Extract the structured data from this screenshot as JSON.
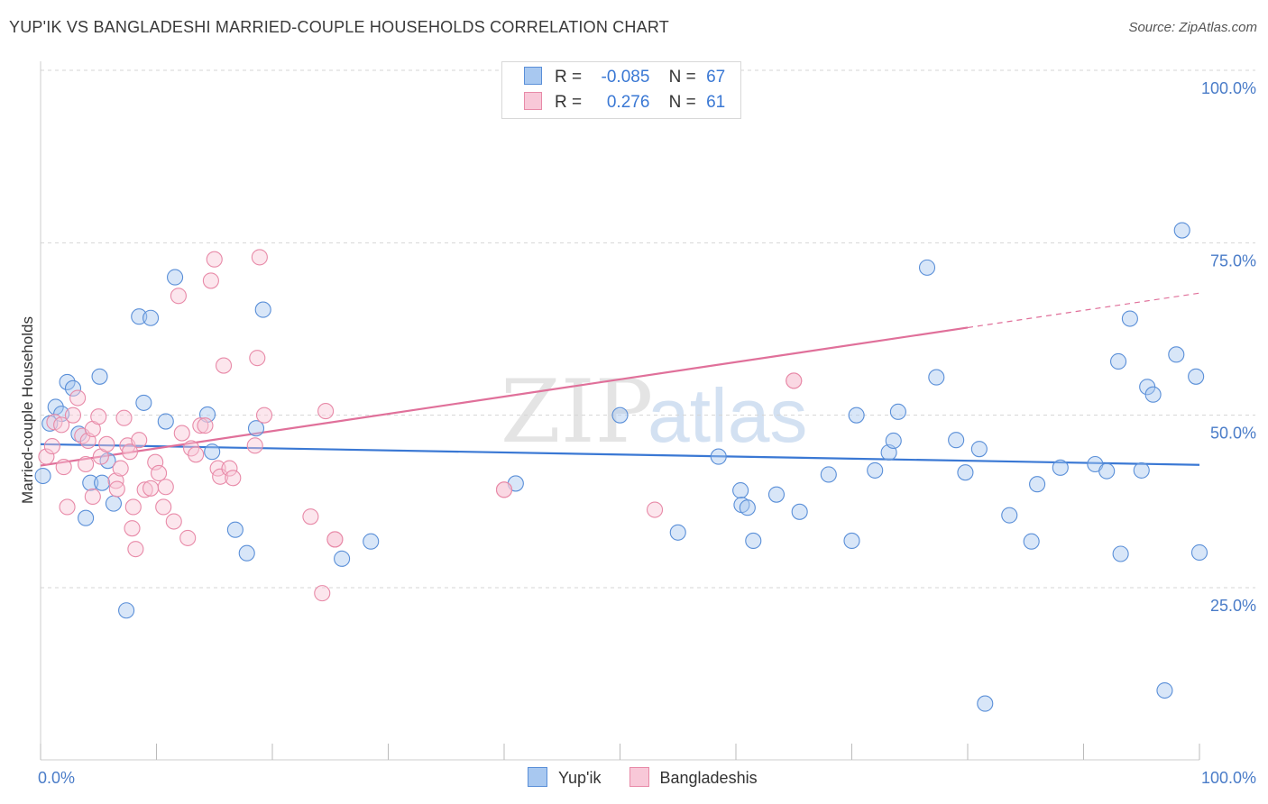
{
  "header": {
    "title": "YUP'IK VS BANGLADESHI MARRIED-COUPLE HOUSEHOLDS CORRELATION CHART",
    "source": "Source: ZipAtlas.com"
  },
  "watermark": {
    "zip": "ZIP",
    "atlas": "atlas"
  },
  "legend": {
    "rows": [
      {
        "r_label": "R =",
        "r_value": "-0.085",
        "n_label": "N =",
        "n_value": "67",
        "color": "#a8c8f0",
        "border": "#5a8fd8"
      },
      {
        "r_label": "R =",
        "r_value": "0.276",
        "n_label": "N =",
        "n_value": "61",
        "color": "#f8c8d8",
        "border": "#e88aa8"
      }
    ]
  },
  "bottom_legend": {
    "items": [
      {
        "label": "Yup'ik",
        "color": "#a8c8f0",
        "border": "#5a8fd8"
      },
      {
        "label": "Bangladeshis",
        "color": "#f8c8d8",
        "border": "#e88aa8"
      }
    ]
  },
  "chart_data": {
    "type": "scatter",
    "title": "YUP'IK VS BANGLADESHI MARRIED-COUPLE HOUSEHOLDS CORRELATION CHART",
    "ylabel": "Married-couple Households",
    "xlabel": "",
    "xlim": [
      0,
      100
    ],
    "ylim": [
      0,
      105
    ],
    "x_tick_labels": [
      "0.0%",
      "100.0%"
    ],
    "y_ticks": [
      25,
      50,
      75,
      100
    ],
    "y_tick_labels": [
      "25.0%",
      "50.0%",
      "75.0%",
      "100.0%"
    ],
    "colors": {
      "yupik": "#3a78d4",
      "bangladeshi": "#e0709a"
    },
    "series": [
      {
        "name": "Yup'ik",
        "R": -0.085,
        "N": 67,
        "trend": {
          "x0": 0,
          "y0": 45.8,
          "x1": 100,
          "y1": 42.8
        },
        "points": [
          [
            0.2,
            41.2
          ],
          [
            0.8,
            48.8
          ],
          [
            1.3,
            51.2
          ],
          [
            1.8,
            50.2
          ],
          [
            2.3,
            54.8
          ],
          [
            2.8,
            53.9
          ],
          [
            3.3,
            47.3
          ],
          [
            3.9,
            35.1
          ],
          [
            4.3,
            40.2
          ],
          [
            5.1,
            55.6
          ],
          [
            5.3,
            40.2
          ],
          [
            5.8,
            43.4
          ],
          [
            6.3,
            37.2
          ],
          [
            7.4,
            21.7
          ],
          [
            8.5,
            64.3
          ],
          [
            8.9,
            51.8
          ],
          [
            9.5,
            64.1
          ],
          [
            10.8,
            49.1
          ],
          [
            11.6,
            70.0
          ],
          [
            14.4,
            50.1
          ],
          [
            14.8,
            44.7
          ],
          [
            16.8,
            33.4
          ],
          [
            17.8,
            30.0
          ],
          [
            18.6,
            48.1
          ],
          [
            19.2,
            65.3
          ],
          [
            26.0,
            29.2
          ],
          [
            28.5,
            31.7
          ],
          [
            41.0,
            40.1
          ],
          [
            50.0,
            50.0
          ],
          [
            55.0,
            33.0
          ],
          [
            58.5,
            44.0
          ],
          [
            60.4,
            39.1
          ],
          [
            60.5,
            37.0
          ],
          [
            61.0,
            36.6
          ],
          [
            61.5,
            31.8
          ],
          [
            63.5,
            38.5
          ],
          [
            65.5,
            36.0
          ],
          [
            68.0,
            41.4
          ],
          [
            70.0,
            31.8
          ],
          [
            70.4,
            50.0
          ],
          [
            72.0,
            42.0
          ],
          [
            73.2,
            44.6
          ],
          [
            73.6,
            46.3
          ],
          [
            74.0,
            50.5
          ],
          [
            76.5,
            71.4
          ],
          [
            77.3,
            55.5
          ],
          [
            79.0,
            46.4
          ],
          [
            79.8,
            41.7
          ],
          [
            81.0,
            45.1
          ],
          [
            81.5,
            8.2
          ],
          [
            83.6,
            35.5
          ],
          [
            85.5,
            31.7
          ],
          [
            86.0,
            40.0
          ],
          [
            88.0,
            42.4
          ],
          [
            91.0,
            42.9
          ],
          [
            92.0,
            41.9
          ],
          [
            93.0,
            57.8
          ],
          [
            93.2,
            29.9
          ],
          [
            94.0,
            64.0
          ],
          [
            95.0,
            42.0
          ],
          [
            95.5,
            54.1
          ],
          [
            96.0,
            53.0
          ],
          [
            97.0,
            10.1
          ],
          [
            98.0,
            58.8
          ],
          [
            98.5,
            76.8
          ],
          [
            99.7,
            55.6
          ],
          [
            100.0,
            30.1
          ]
        ]
      },
      {
        "name": "Bangladeshis",
        "R": 0.276,
        "N": 61,
        "trend": {
          "x0": 0,
          "y0": 42.7,
          "x1": 80,
          "y1": 62.7,
          "dashed_to_x": 100,
          "dashed_to_y": 67.7
        },
        "points": [
          [
            0.5,
            44.0
          ],
          [
            1.0,
            45.5
          ],
          [
            1.2,
            49.0
          ],
          [
            1.8,
            48.6
          ],
          [
            2.0,
            42.5
          ],
          [
            2.3,
            36.7
          ],
          [
            2.8,
            50.0
          ],
          [
            3.2,
            52.5
          ],
          [
            3.6,
            47.0
          ],
          [
            3.9,
            42.9
          ],
          [
            4.1,
            46.3
          ],
          [
            4.5,
            48.0
          ],
          [
            4.5,
            38.2
          ],
          [
            5.0,
            49.8
          ],
          [
            5.2,
            44.0
          ],
          [
            5.7,
            45.8
          ],
          [
            6.5,
            40.5
          ],
          [
            6.6,
            39.3
          ],
          [
            6.9,
            42.3
          ],
          [
            7.2,
            49.6
          ],
          [
            7.5,
            45.6
          ],
          [
            7.7,
            44.7
          ],
          [
            7.9,
            33.6
          ],
          [
            8.0,
            36.7
          ],
          [
            8.2,
            30.6
          ],
          [
            8.5,
            46.4
          ],
          [
            9.0,
            39.2
          ],
          [
            9.5,
            39.4
          ],
          [
            9.9,
            43.2
          ],
          [
            10.2,
            41.6
          ],
          [
            10.6,
            36.7
          ],
          [
            10.8,
            39.6
          ],
          [
            11.5,
            34.6
          ],
          [
            11.9,
            67.3
          ],
          [
            12.2,
            47.4
          ],
          [
            12.7,
            32.2
          ],
          [
            13.0,
            45.2
          ],
          [
            13.4,
            44.3
          ],
          [
            13.8,
            48.5
          ],
          [
            14.2,
            48.5
          ],
          [
            14.7,
            69.5
          ],
          [
            15.0,
            72.6
          ],
          [
            15.3,
            42.3
          ],
          [
            15.5,
            41.1
          ],
          [
            15.8,
            57.2
          ],
          [
            16.3,
            42.3
          ],
          [
            16.6,
            40.9
          ],
          [
            18.5,
            45.6
          ],
          [
            18.7,
            58.3
          ],
          [
            18.9,
            72.9
          ],
          [
            19.3,
            50.0
          ],
          [
            23.3,
            35.3
          ],
          [
            24.3,
            24.2
          ],
          [
            24.6,
            50.6
          ],
          [
            25.4,
            32.0
          ],
          [
            40.0,
            39.2
          ],
          [
            53.0,
            36.3
          ],
          [
            65.0,
            55.0
          ],
          [
            65.0,
            55.0
          ],
          [
            25.4,
            32.0
          ],
          [
            40.0,
            39.2
          ]
        ]
      }
    ]
  }
}
